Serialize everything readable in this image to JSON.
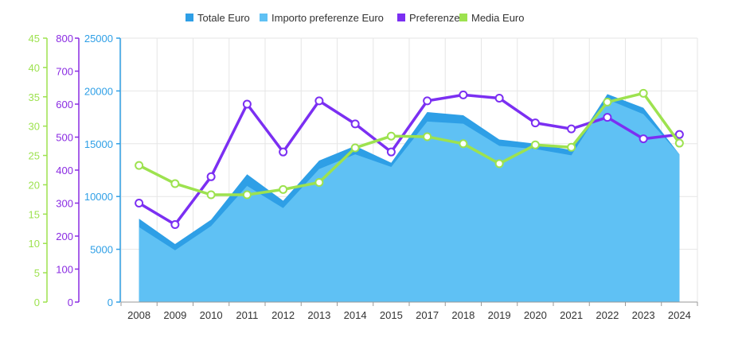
{
  "chart_data": {
    "type": "line",
    "categories": [
      "2008",
      "2009",
      "2010",
      "2011",
      "2012",
      "2013",
      "2014",
      "2015",
      "2017",
      "2018",
      "2019",
      "2020",
      "2021",
      "2022",
      "2023",
      "2024"
    ],
    "series": [
      {
        "name": "Totale Euro",
        "kind": "area",
        "axis": "euro",
        "color": "#2e9fe6",
        "values": [
          7900,
          5500,
          7800,
          12100,
          9600,
          13400,
          14800,
          13200,
          18000,
          17700,
          15400,
          15000,
          14400,
          19700,
          18400,
          14000
        ]
      },
      {
        "name": "Importo preferenze Euro",
        "kind": "area",
        "axis": "euro",
        "color": "#5fc1f4",
        "values": [
          7100,
          4900,
          7200,
          11000,
          8900,
          12600,
          14000,
          12800,
          17100,
          16900,
          14800,
          14500,
          13900,
          19200,
          17800,
          14000
        ]
      },
      {
        "name": "Preferenze",
        "kind": "line",
        "axis": "pref",
        "color": "#7b2ff2",
        "values": [
          300,
          235,
          380,
          600,
          455,
          610,
          540,
          455,
          610,
          628,
          618,
          543,
          525,
          560,
          495,
          508
        ]
      },
      {
        "name": "Media Euro",
        "kind": "line",
        "axis": "media",
        "color": "#9de24f",
        "values": [
          23.3,
          20.2,
          18.3,
          18.3,
          19.2,
          20.4,
          26.3,
          28.3,
          28.2,
          27.0,
          23.6,
          26.8,
          26.4,
          34.1,
          35.6,
          27.1
        ]
      }
    ],
    "axes": {
      "euro": {
        "color": "#2e9fe6",
        "min": 0,
        "max": 25000,
        "ticks": [
          "0",
          "5000",
          "10000",
          "15000",
          "20000",
          "25000"
        ]
      },
      "pref": {
        "color": "#8a2be2",
        "min": 0,
        "max": 800,
        "ticks": [
          "0",
          "100",
          "200",
          "300",
          "400",
          "500",
          "600",
          "700",
          "800"
        ]
      },
      "media": {
        "color": "#9de24f",
        "min": 0,
        "max": 45,
        "ticks": [
          "0",
          "5",
          "10",
          "15",
          "20",
          "25",
          "30",
          "35",
          "40",
          "45"
        ]
      }
    },
    "legend_position": "top-center",
    "grid": true
  }
}
